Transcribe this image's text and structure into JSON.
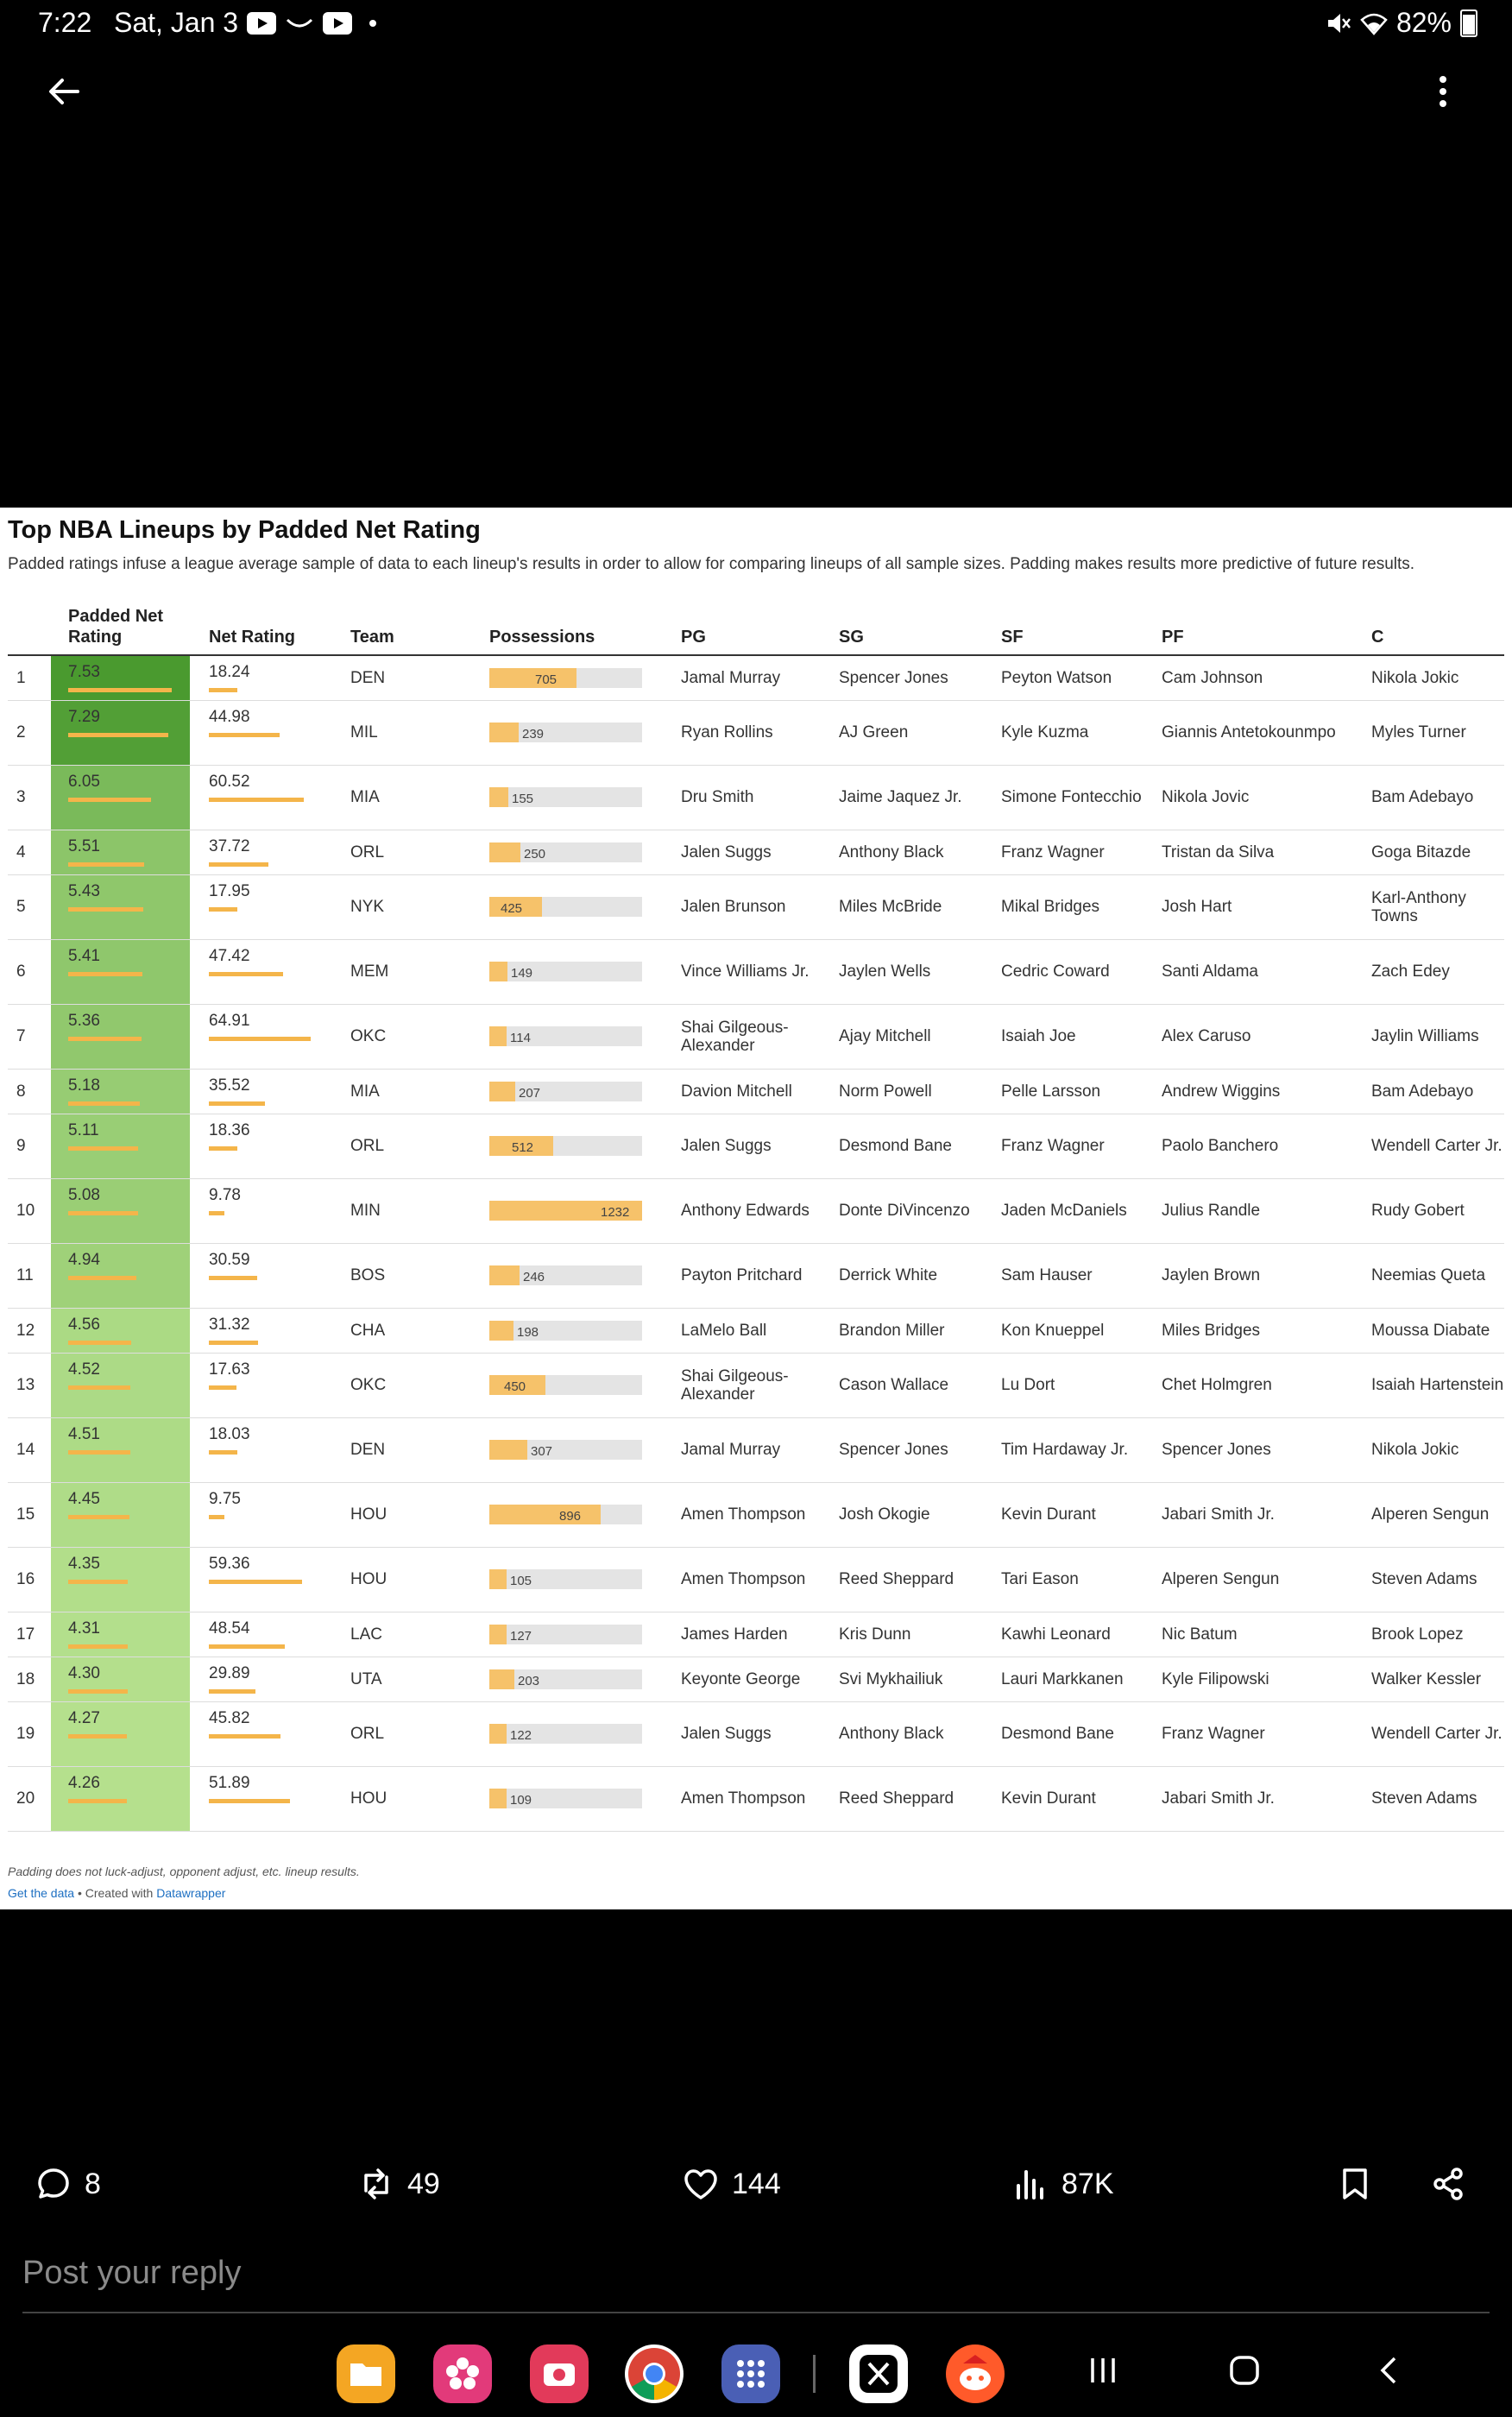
{
  "status_bar": {
    "time": "7:22",
    "date": "Sat, Jan 3",
    "battery": "82%"
  },
  "chart": {
    "title": "Top NBA Lineups by Padded Net Rating",
    "subtitle": "Padded ratings infuse a league average sample of data to each lineup's results in order to allow for comparing lineups of all sample sizes. Padding makes results more predictive of future results.",
    "columns": {
      "rank": "",
      "pnr": "Padded Net Rating",
      "nr": "Net Rating",
      "team": "Team",
      "poss": "Possessions",
      "pg": "PG",
      "sg": "SG",
      "sf": "SF",
      "pf": "PF",
      "c": "C"
    },
    "footnote": "Padding does not luck-adjust, opponent adjust, etc. lineup results.",
    "get_data": "Get the data",
    "created_with": " • Created with ",
    "datawrapper": "Datawrapper"
  },
  "chart_data": {
    "type": "table",
    "title": "Top NBA Lineups by Padded Net Rating",
    "colors": {
      "pnr_dark": "#4a9a2f",
      "pnr_light": "#b5e08d",
      "bar": "#f4b54a",
      "poss_fill": "#f6c26a"
    },
    "poss_max": 1232,
    "nr_max": 64.91,
    "pnr_max": 7.53,
    "rows": [
      {
        "rank": "1",
        "pnr": "7.53",
        "nr": "18.24",
        "team": "DEN",
        "poss": "705",
        "pg": "Jamal Murray",
        "sg": "Spencer Jones",
        "sf": "Peyton Watson",
        "pf": "Cam Johnson",
        "c": "Nikola Jokic"
      },
      {
        "rank": "2",
        "pnr": "7.29",
        "nr": "44.98",
        "team": "MIL",
        "poss": "239",
        "pg": "Ryan Rollins",
        "sg": "AJ Green",
        "sf": "Kyle Kuzma",
        "pf": "Giannis Antetokounmpo",
        "c": "Myles Turner"
      },
      {
        "rank": "3",
        "pnr": "6.05",
        "nr": "60.52",
        "team": "MIA",
        "poss": "155",
        "pg": "Dru Smith",
        "sg": "Jaime Jaquez Jr.",
        "sf": "Simone Fontecchio",
        "pf": "Nikola Jovic",
        "c": "Bam Adebayo"
      },
      {
        "rank": "4",
        "pnr": "5.51",
        "nr": "37.72",
        "team": "ORL",
        "poss": "250",
        "pg": "Jalen Suggs",
        "sg": "Anthony Black",
        "sf": "Franz Wagner",
        "pf": "Tristan da Silva",
        "c": "Goga Bitazde"
      },
      {
        "rank": "5",
        "pnr": "5.43",
        "nr": "17.95",
        "team": "NYK",
        "poss": "425",
        "pg": "Jalen Brunson",
        "sg": "Miles McBride",
        "sf": "Mikal Bridges",
        "pf": "Josh Hart",
        "c": "Karl-Anthony Towns"
      },
      {
        "rank": "6",
        "pnr": "5.41",
        "nr": "47.42",
        "team": "MEM",
        "poss": "149",
        "pg": "Vince Williams Jr.",
        "sg": "Jaylen Wells",
        "sf": "Cedric Coward",
        "pf": "Santi Aldama",
        "c": "Zach Edey"
      },
      {
        "rank": "7",
        "pnr": "5.36",
        "nr": "64.91",
        "team": "OKC",
        "poss": "114",
        "pg": "Shai Gilgeous-Alexander",
        "sg": "Ajay Mitchell",
        "sf": "Isaiah Joe",
        "pf": "Alex Caruso",
        "c": "Jaylin Williams"
      },
      {
        "rank": "8",
        "pnr": "5.18",
        "nr": "35.52",
        "team": "MIA",
        "poss": "207",
        "pg": "Davion Mitchell",
        "sg": "Norm Powell",
        "sf": "Pelle Larsson",
        "pf": "Andrew Wiggins",
        "c": "Bam Adebayo"
      },
      {
        "rank": "9",
        "pnr": "5.11",
        "nr": "18.36",
        "team": "ORL",
        "poss": "512",
        "pg": "Jalen Suggs",
        "sg": "Desmond Bane",
        "sf": "Franz Wagner",
        "pf": "Paolo Banchero",
        "c": "Wendell Carter Jr."
      },
      {
        "rank": "10",
        "pnr": "5.08",
        "nr": "9.78",
        "team": "MIN",
        "poss": "1232",
        "pg": "Anthony Edwards",
        "sg": "Donte DiVincenzo",
        "sf": "Jaden McDaniels",
        "pf": "Julius Randle",
        "c": "Rudy Gobert"
      },
      {
        "rank": "11",
        "pnr": "4.94",
        "nr": "30.59",
        "team": "BOS",
        "poss": "246",
        "pg": "Payton Pritchard",
        "sg": "Derrick White",
        "sf": "Sam Hauser",
        "pf": "Jaylen Brown",
        "c": "Neemias Queta"
      },
      {
        "rank": "12",
        "pnr": "4.56",
        "nr": "31.32",
        "team": "CHA",
        "poss": "198",
        "pg": "LaMelo Ball",
        "sg": "Brandon Miller",
        "sf": "Kon Knueppel",
        "pf": "Miles Bridges",
        "c": "Moussa Diabate"
      },
      {
        "rank": "13",
        "pnr": "4.52",
        "nr": "17.63",
        "team": "OKC",
        "poss": "450",
        "pg": "Shai Gilgeous-Alexander",
        "sg": "Cason Wallace",
        "sf": "Lu Dort",
        "pf": "Chet Holmgren",
        "c": "Isaiah Hartenstein"
      },
      {
        "rank": "14",
        "pnr": "4.51",
        "nr": "18.03",
        "team": "DEN",
        "poss": "307",
        "pg": "Jamal Murray",
        "sg": "Spencer Jones",
        "sf": "Tim Hardaway Jr.",
        "pf": "Spencer Jones",
        "c": "Nikola Jokic"
      },
      {
        "rank": "15",
        "pnr": "4.45",
        "nr": "9.75",
        "team": "HOU",
        "poss": "896",
        "pg": "Amen Thompson",
        "sg": "Josh Okogie",
        "sf": "Kevin Durant",
        "pf": "Jabari Smith Jr.",
        "c": "Alperen Sengun"
      },
      {
        "rank": "16",
        "pnr": "4.35",
        "nr": "59.36",
        "team": "HOU",
        "poss": "105",
        "pg": "Amen Thompson",
        "sg": "Reed Sheppard",
        "sf": "Tari Eason",
        "pf": "Alperen Sengun",
        "c": "Steven Adams"
      },
      {
        "rank": "17",
        "pnr": "4.31",
        "nr": "48.54",
        "team": "LAC",
        "poss": "127",
        "pg": "James Harden",
        "sg": "Kris Dunn",
        "sf": "Kawhi Leonard",
        "pf": "Nic Batum",
        "c": "Brook Lopez"
      },
      {
        "rank": "18",
        "pnr": "4.30",
        "nr": "29.89",
        "team": "UTA",
        "poss": "203",
        "pg": "Keyonte George",
        "sg": "Svi Mykhailiuk",
        "sf": "Lauri Markkanen",
        "pf": "Kyle Filipowski",
        "c": "Walker Kessler"
      },
      {
        "rank": "19",
        "pnr": "4.27",
        "nr": "45.82",
        "team": "ORL",
        "poss": "122",
        "pg": "Jalen Suggs",
        "sg": "Anthony Black",
        "sf": "Desmond Bane",
        "pf": "Franz Wagner",
        "c": "Wendell Carter Jr."
      },
      {
        "rank": "20",
        "pnr": "4.26",
        "nr": "51.89",
        "team": "HOU",
        "poss": "109",
        "pg": "Amen Thompson",
        "sg": "Reed Sheppard",
        "sf": "Kevin Durant",
        "pf": "Jabari Smith Jr.",
        "c": "Steven Adams"
      }
    ]
  },
  "actions": {
    "replies": "8",
    "reposts": "49",
    "likes": "144",
    "views": "87K"
  },
  "reply_placeholder": "Post your reply",
  "icons": [
    "back-arrow-icon",
    "more-vert-icon",
    "comment-icon",
    "repost-icon",
    "heart-icon",
    "views-icon",
    "bookmark-icon",
    "share-icon"
  ]
}
